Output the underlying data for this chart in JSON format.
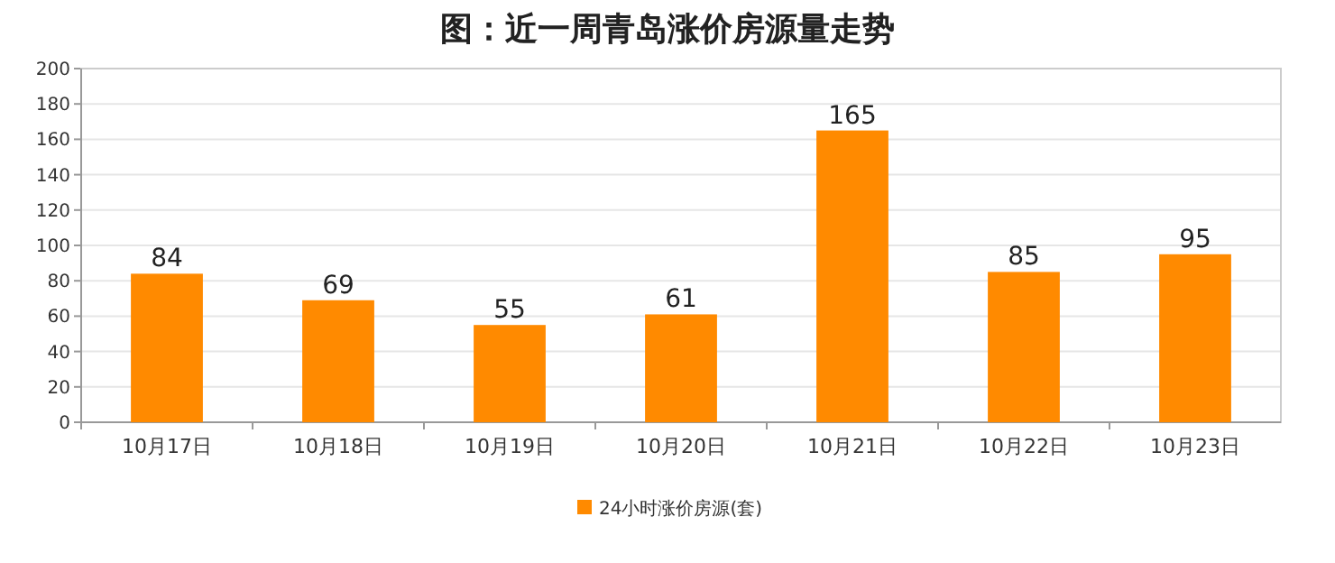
{
  "chart_data": {
    "type": "bar",
    "title": "图：近一周青岛涨价房源量走势",
    "categories": [
      "10月17日",
      "10月18日",
      "10月19日",
      "10月20日",
      "10月21日",
      "10月22日",
      "10月23日"
    ],
    "series": [
      {
        "name": "24小时涨价房源(套)",
        "color": "#ff8a00",
        "values": [
          84,
          69,
          55,
          61,
          165,
          85,
          95
        ]
      }
    ],
    "ylim": [
      0,
      200
    ],
    "yticks": [
      0,
      20,
      40,
      60,
      80,
      100,
      120,
      140,
      160,
      180,
      200
    ],
    "grid": "y",
    "data_labels": true,
    "legend": "bottom"
  }
}
